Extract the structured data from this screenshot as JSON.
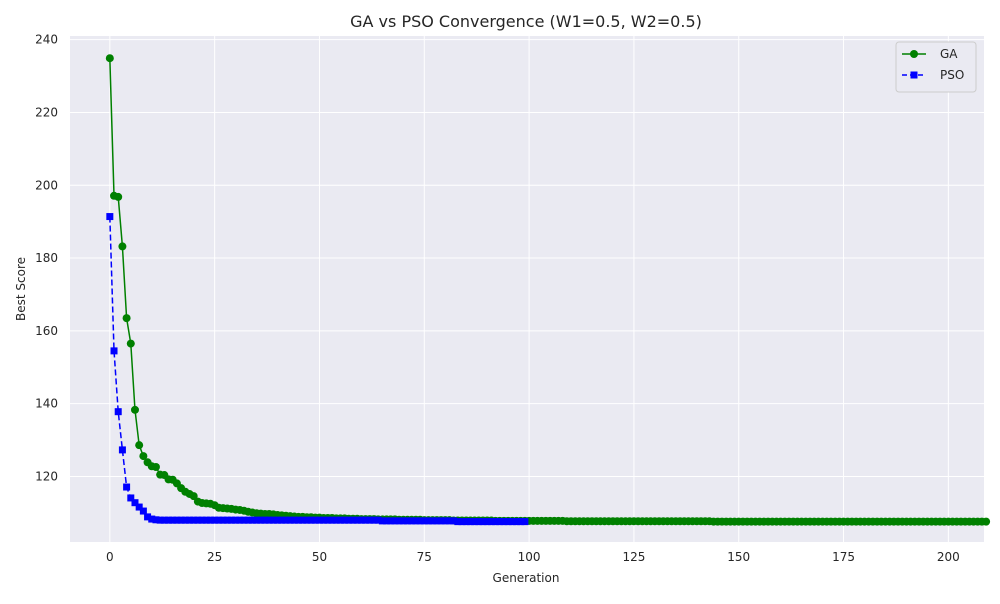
{
  "chart_data": {
    "type": "line",
    "title": "GA vs PSO Convergence (W1=0.5, W2=0.5)",
    "xlabel": "Generation",
    "ylabel": "Best Score",
    "xlim": [
      -9.5,
      208.5
    ],
    "ylim": [
      102,
      241
    ],
    "x_ticks": [
      0,
      25,
      50,
      75,
      100,
      125,
      150,
      175,
      200
    ],
    "y_ticks": [
      120,
      140,
      160,
      180,
      200,
      220,
      240
    ],
    "grid": true,
    "legend_position": "top-right",
    "series": [
      {
        "name": "GA",
        "color": "#008000",
        "marker": "circle",
        "line_style": "solid",
        "x_start": 0,
        "values": [
          234.9,
          197.1,
          196.8,
          183.2,
          163.5,
          156.5,
          138.3,
          128.6,
          125.6,
          123.9,
          122.8,
          122.6,
          120.5,
          120.4,
          119.2,
          119.1,
          118.1,
          116.8,
          115.8,
          115.2,
          114.6,
          113.1,
          112.7,
          112.6,
          112.5,
          112.1,
          111.4,
          111.3,
          111.2,
          111.1,
          110.9,
          110.8,
          110.6,
          110.3,
          110.1,
          109.9,
          109.8,
          109.7,
          109.7,
          109.6,
          109.4,
          109.3,
          109.2,
          109.1,
          109.0,
          108.9,
          108.9,
          108.8,
          108.8,
          108.7,
          108.7,
          108.6,
          108.6,
          108.6,
          108.5,
          108.5,
          108.5,
          108.4,
          108.4,
          108.4,
          108.3,
          108.3,
          108.3,
          108.3,
          108.2,
          108.2,
          108.2,
          108.2,
          108.2,
          108.1,
          108.1,
          108.1,
          108.1,
          108.1,
          108.1,
          108.0,
          108.0,
          108.0,
          108.0,
          108.0,
          108.0,
          108.0,
          107.9,
          107.9,
          107.9,
          107.9,
          107.9,
          107.9,
          107.9,
          107.9,
          107.9,
          107.9,
          107.8,
          107.8,
          107.8,
          107.8,
          107.8,
          107.8,
          107.8,
          107.8,
          107.8,
          107.8,
          107.8,
          107.8,
          107.8,
          107.8,
          107.8,
          107.8,
          107.8,
          107.7,
          107.7,
          107.7,
          107.7,
          107.7,
          107.7,
          107.7,
          107.7,
          107.7,
          107.7,
          107.7,
          107.7,
          107.7,
          107.7,
          107.7,
          107.7,
          107.7,
          107.7,
          107.7,
          107.7,
          107.7,
          107.7,
          107.7,
          107.7,
          107.7,
          107.7,
          107.7,
          107.7,
          107.7,
          107.7,
          107.7,
          107.7,
          107.7,
          107.7,
          107.7,
          107.6,
          107.6,
          107.6,
          107.6,
          107.6,
          107.6,
          107.6,
          107.6,
          107.6,
          107.6,
          107.6,
          107.6,
          107.6,
          107.6,
          107.6,
          107.6,
          107.6,
          107.6,
          107.6,
          107.6,
          107.6,
          107.6,
          107.6,
          107.6,
          107.6,
          107.6,
          107.6,
          107.6,
          107.6,
          107.6,
          107.6,
          107.6,
          107.6,
          107.6,
          107.6,
          107.6,
          107.6,
          107.6,
          107.6,
          107.6,
          107.6,
          107.6,
          107.6,
          107.6,
          107.6,
          107.6,
          107.6,
          107.6,
          107.6,
          107.6,
          107.6,
          107.6,
          107.6,
          107.6,
          107.6,
          107.6,
          107.6,
          107.6,
          107.6,
          107.6,
          107.6,
          107.6,
          107.6,
          107.6,
          107.6,
          107.6
        ]
      },
      {
        "name": "PSO",
        "color": "#0000ff",
        "marker": "square",
        "line_style": "dashed",
        "x_start": 0,
        "values": [
          191.4,
          154.5,
          137.8,
          127.3,
          117.1,
          114.1,
          112.8,
          111.6,
          110.5,
          108.9,
          108.3,
          108.1,
          108.0,
          108.0,
          108.0,
          108.0,
          108.0,
          108.0,
          108.0,
          108.0,
          108.0,
          108.0,
          108.0,
          108.0,
          108.0,
          108.0,
          108.0,
          108.0,
          108.0,
          108.0,
          108.0,
          108.0,
          108.0,
          108.0,
          108.0,
          108.0,
          108.0,
          108.0,
          108.0,
          108.0,
          108.0,
          108.0,
          108.0,
          108.0,
          108.0,
          108.0,
          108.0,
          108.0,
          108.0,
          108.0,
          108.0,
          108.0,
          108.0,
          108.0,
          108.0,
          108.0,
          108.0,
          108.0,
          108.0,
          108.0,
          108.0,
          108.0,
          108.0,
          108.0,
          108.0,
          107.8,
          107.8,
          107.8,
          107.8,
          107.8,
          107.8,
          107.8,
          107.8,
          107.8,
          107.8,
          107.8,
          107.8,
          107.8,
          107.8,
          107.8,
          107.8,
          107.8,
          107.8,
          107.6,
          107.6,
          107.6,
          107.6,
          107.6,
          107.6,
          107.6,
          107.6,
          107.6,
          107.6,
          107.6,
          107.6,
          107.6,
          107.6,
          107.6,
          107.6,
          107.6
        ]
      }
    ]
  }
}
